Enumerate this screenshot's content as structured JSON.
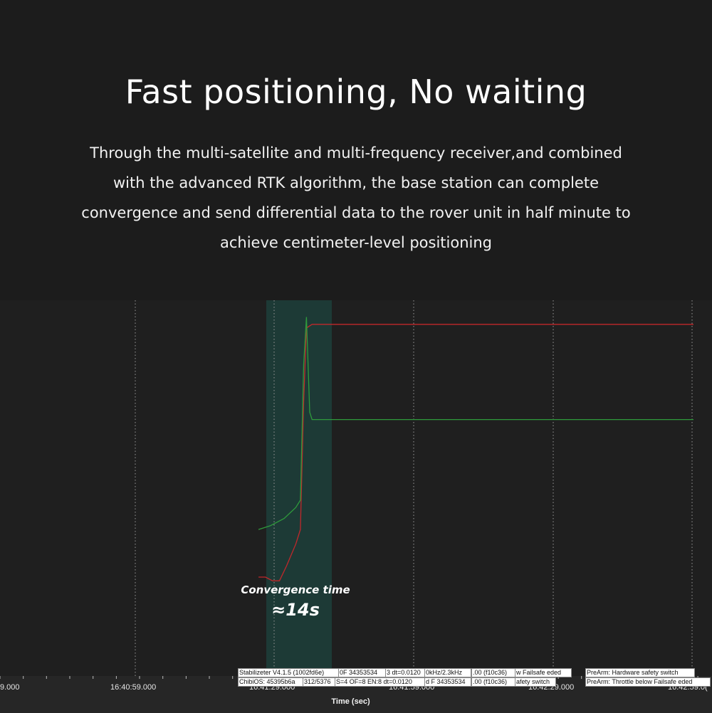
{
  "header": {
    "title": "Fast positioning, No waiting",
    "description_lines": [
      "Through the multi-satellite and multi-frequency receiver,and combined",
      "with the advanced RTK algorithm, the base station can complete",
      "convergence and send differential data to the rover unit in half minute to",
      "achieve centimeter-level positioning"
    ]
  },
  "annotation": {
    "label": "Convergence time",
    "value": "≈14s"
  },
  "colors": {
    "background": "#1c1c1c",
    "plot_background": "#1f1f1f",
    "highlight_band": "#1d3a36",
    "series_red": "#c0282b",
    "series_green": "#2f9a3c",
    "grid": "#9a9a9a"
  },
  "chart_data": {
    "type": "line",
    "xlabel": "Time (sec)",
    "x_tick_labels": [
      "9.000",
      "16:40:59.000",
      "16.41.29.000",
      "16.41.59.000",
      "16.42.29.000",
      "16.42.59.0("
    ],
    "grid": true,
    "series": [
      {
        "color": "#c0282b",
        "x": [
          "16:41:25.5",
          "16:41:27.0",
          "16:41:28.5",
          "16:41:30.0",
          "16:41:31.5",
          "16:41:33.5",
          "16:41:34.5",
          "16:41:35.2",
          "16:41:35.8",
          "16:41:37.0",
          "16:41:45.0",
          "16:41:50.0",
          "16:42:30.0",
          "16:42:40.0",
          "16:42:59.0"
        ],
        "values": [
          0.27,
          0.27,
          0.26,
          0.26,
          0.3,
          0.36,
          0.4,
          0.75,
          0.95,
          0.96,
          0.96,
          0.96,
          0.96,
          0.96,
          0.96
        ]
      },
      {
        "color": "#2f9a3c",
        "x": [
          "16:41:25.5",
          "16:41:28.0",
          "16:41:31.0",
          "16:41:33.5",
          "16:41:34.5",
          "16:41:35.2",
          "16:41:35.8",
          "16:41:36.5",
          "16:41:37.0",
          "16:41:50.0",
          "16:42:30.0",
          "16:42:59.0"
        ],
        "values": [
          0.4,
          0.41,
          0.43,
          0.46,
          0.48,
          0.85,
          0.98,
          0.72,
          0.7,
          0.7,
          0.7,
          0.7
        ]
      }
    ]
  },
  "messages": {
    "row1": [
      "Stabilizeter V4.1.5 (1002fd6e)",
      "0F 34353534",
      "3 dt=0.0120",
      "0kHz/2.3kHz",
      ".00 (f10c36)",
      "w Failsafe eded",
      "PreArm: Hardware safety switch"
    ],
    "row2": [
      "ChibiOS: 45395b6a",
      "312/5376",
      "S=4 OF=8 EN:8 dt=0.0120",
      "d F 34353534",
      ".00 (f10c36)",
      "afety switch",
      "PreArm: Throttle below Failsafe eded"
    ]
  }
}
